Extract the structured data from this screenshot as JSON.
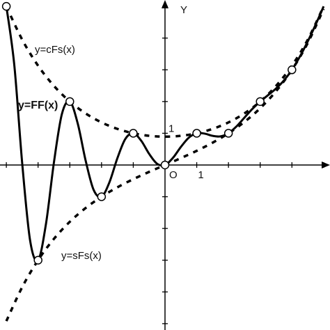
{
  "chart_data": {
    "type": "line",
    "ylabel": "Y",
    "origin_label": "O",
    "xlim": [
      -5.2,
      5.2
    ],
    "ylim": [
      -5.2,
      5.2
    ],
    "xticks": [
      -5,
      -4,
      -3,
      -2,
      -1,
      1,
      2,
      3,
      4,
      5
    ],
    "yticks": [
      -5,
      -4,
      -3,
      -2,
      -1,
      1,
      2,
      3,
      4,
      5
    ],
    "xtick_labels": [
      1
    ],
    "ytick_labels": [
      1
    ],
    "color": "#000000",
    "series": [
      {
        "name": "y=FF(x)",
        "style": "solid",
        "x": [
          -5,
          -4.75,
          -4.5,
          -4.25,
          -4,
          -3.75,
          -3.5,
          -3.25,
          -3,
          -2.75,
          -2.5,
          -2.25,
          -2,
          -1.75,
          -1.5,
          -1.25,
          -1,
          -0.75,
          -0.5,
          -0.25,
          0,
          0.25,
          0.5,
          0.75,
          1,
          1.25,
          1.5,
          1.75,
          2,
          2.25,
          2.5,
          2.75,
          3,
          3.25,
          3.5,
          3.75,
          4,
          4.25,
          4.5,
          4.75,
          5
        ],
        "values": [
          5,
          3.155,
          0.051,
          -2.387,
          -3,
          -1.848,
          0.083,
          1.604,
          2,
          1.307,
          0.134,
          -0.782,
          -1,
          -0.541,
          0.217,
          0.822,
          1,
          0.765,
          0.352,
          0.04,
          0,
          0.224,
          0.569,
          0.862,
          1,
          0.989,
          0.92,
          0.902,
          1,
          1.213,
          1.489,
          1.764,
          2,
          2.203,
          2.41,
          2.666,
          3,
          3.416,
          3.899,
          4.43,
          5
        ]
      },
      {
        "name": "y=cFs(x)",
        "style": "dashed",
        "x": [
          -5,
          -4.5,
          -4,
          -3.5,
          -3,
          -2.5,
          -2,
          -1.5,
          -1,
          -0.5,
          0,
          0.5,
          1,
          1.5,
          2,
          2.5,
          3,
          3.5,
          4,
          4.5,
          5
        ],
        "values": [
          5,
          3.95,
          3.13,
          2.493,
          2,
          1.624,
          1.342,
          1.138,
          1,
          0.92,
          0.894,
          0.92,
          1,
          1.138,
          1.342,
          1.624,
          2,
          2.493,
          3.13,
          3.95,
          5
        ]
      },
      {
        "name": "y=sFs(x)",
        "style": "dashed",
        "x": [
          -5,
          -4.5,
          -4,
          -3.5,
          -3,
          -2.5,
          -2,
          -1.5,
          -1,
          -0.5,
          0,
          0.5,
          1,
          1.5,
          2,
          2.5,
          3,
          3.5,
          4,
          4.5,
          5
        ],
        "values": [
          -4.919,
          -3.848,
          -3,
          -2.327,
          -1.789,
          -1.355,
          -1,
          -0.703,
          -0.447,
          -0.217,
          0,
          0.217,
          0.447,
          0.703,
          1,
          1.355,
          1.789,
          2.327,
          3,
          3.848,
          4.919
        ]
      }
    ],
    "markers": {
      "x": [
        -5,
        -4,
        -3,
        -2,
        -1,
        0,
        1,
        2,
        3,
        4
      ],
      "values": [
        5,
        -3,
        2,
        -1,
        1,
        0,
        1,
        1,
        2,
        3
      ]
    }
  }
}
